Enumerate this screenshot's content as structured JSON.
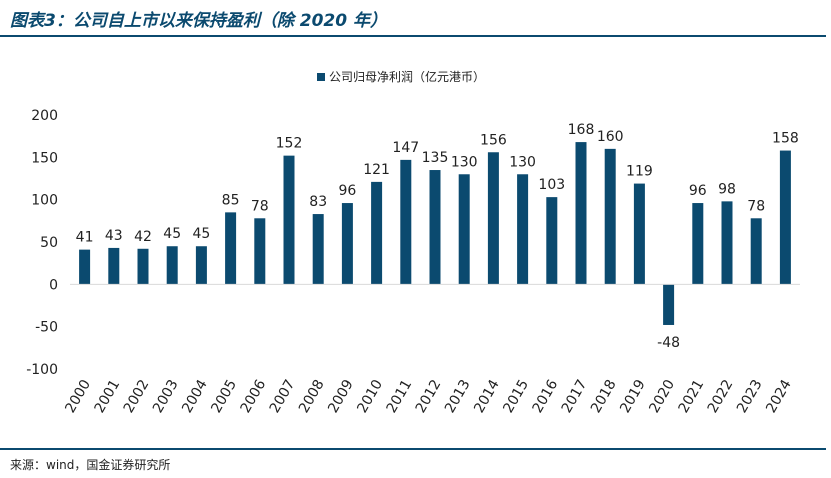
{
  "title": "图表3：公司自上市以来保持盈利（除 2020 年）",
  "source": "来源：wind，国金证券研究所",
  "chart_data": {
    "type": "bar",
    "categories": [
      "2000",
      "2001",
      "2002",
      "2003",
      "2004",
      "2005",
      "2006",
      "2007",
      "2008",
      "2009",
      "2010",
      "2011",
      "2012",
      "2013",
      "2014",
      "2015",
      "2016",
      "2017",
      "2018",
      "2019",
      "2020",
      "2021",
      "2022",
      "2023",
      "2024"
    ],
    "series": [
      {
        "name": "公司归母净利润（亿元港币）",
        "values": [
          41,
          43,
          42,
          45,
          45,
          85,
          78,
          152,
          83,
          96,
          121,
          147,
          135,
          130,
          156,
          130,
          103,
          168,
          160,
          119,
          -48,
          96,
          98,
          78,
          158
        ]
      }
    ],
    "ylim": [
      -100,
      200
    ],
    "yticks": [
      -100,
      -50,
      0,
      50,
      100,
      150,
      200
    ],
    "legend": "top-center",
    "grid": false,
    "bar_color": "#0b4a6f"
  }
}
